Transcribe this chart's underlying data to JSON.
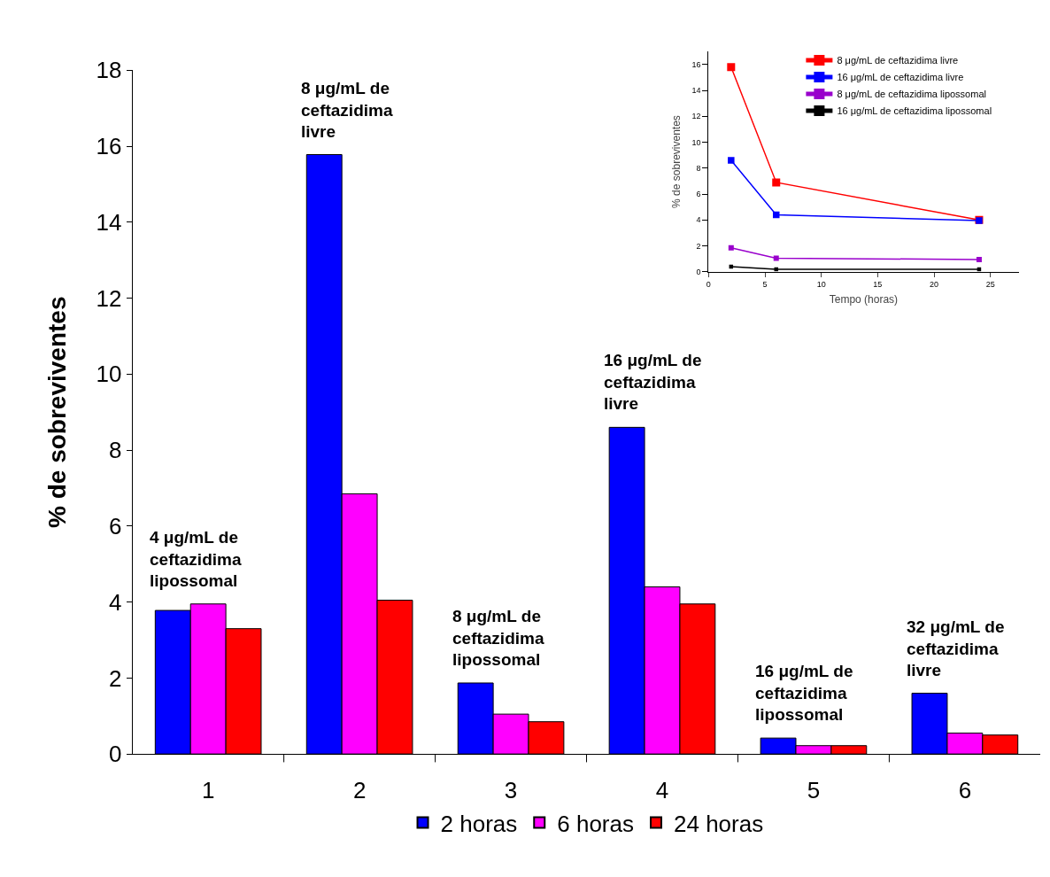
{
  "chart_data": [
    {
      "type": "bar",
      "ylabel": "% de sobreviventes",
      "categories": [
        "1",
        "2",
        "3",
        "4",
        "5",
        "6"
      ],
      "series": [
        {
          "name": "2 horas",
          "color": "#0000ff",
          "values": [
            3.78,
            15.78,
            1.87,
            8.6,
            0.42,
            1.6
          ]
        },
        {
          "name": "6 horas",
          "color": "#ff00ff",
          "values": [
            3.95,
            6.85,
            1.05,
            4.4,
            0.22,
            0.55
          ]
        },
        {
          "name": "24 horas",
          "color": "#ff0000",
          "values": [
            3.3,
            4.05,
            0.85,
            3.95,
            0.22,
            0.5
          ]
        }
      ],
      "annotations": [
        "4 μg/mL de\nceftazidima\nlipossomal",
        "8 μg/mL de\nceftazidima\nlivre",
        "8 μg/mL de\nceftazidima\nlipossomal",
        "16 μg/mL de\nceftazidima\nlivre",
        "16 μg/mL de\nceftazidima\nlipossomal",
        "32 μg/mL de\nceftazidima\nlivre"
      ],
      "ylim": [
        0,
        18
      ],
      "yticks": [
        0,
        2,
        4,
        6,
        8,
        10,
        12,
        14,
        16,
        18
      ],
      "grid": false,
      "legend": "bottom"
    },
    {
      "type": "line",
      "xlabel": "Tempo (horas)",
      "ylabel": "% de sobreviventes",
      "x": [
        2,
        6,
        24
      ],
      "series": [
        {
          "name": "8 μg/mL de ceftazidima livre",
          "color": "#ff0000",
          "values": [
            15.8,
            6.9,
            4.0
          ]
        },
        {
          "name": "16 μg/mL de ceftazidima livre",
          "color": "#0000ff",
          "values": [
            8.6,
            4.4,
            3.95
          ]
        },
        {
          "name": "8 μg/mL de ceftazidima lipossomal",
          "color": "#9900cc",
          "values": [
            1.85,
            1.05,
            0.95
          ]
        },
        {
          "name": "16 μg/mL de ceftazidima lipossomal",
          "color": "#000000",
          "values": [
            0.4,
            0.2,
            0.2
          ]
        }
      ],
      "xlim": [
        0,
        27.5
      ],
      "xticks": [
        0,
        5,
        10,
        15,
        20,
        25
      ],
      "ylim": [
        0,
        17
      ],
      "yticks": [
        0,
        2,
        4,
        6,
        8,
        10,
        12,
        14,
        16
      ],
      "grid": false,
      "legend": "top right",
      "marker": "square",
      "line_style": "solid"
    }
  ]
}
